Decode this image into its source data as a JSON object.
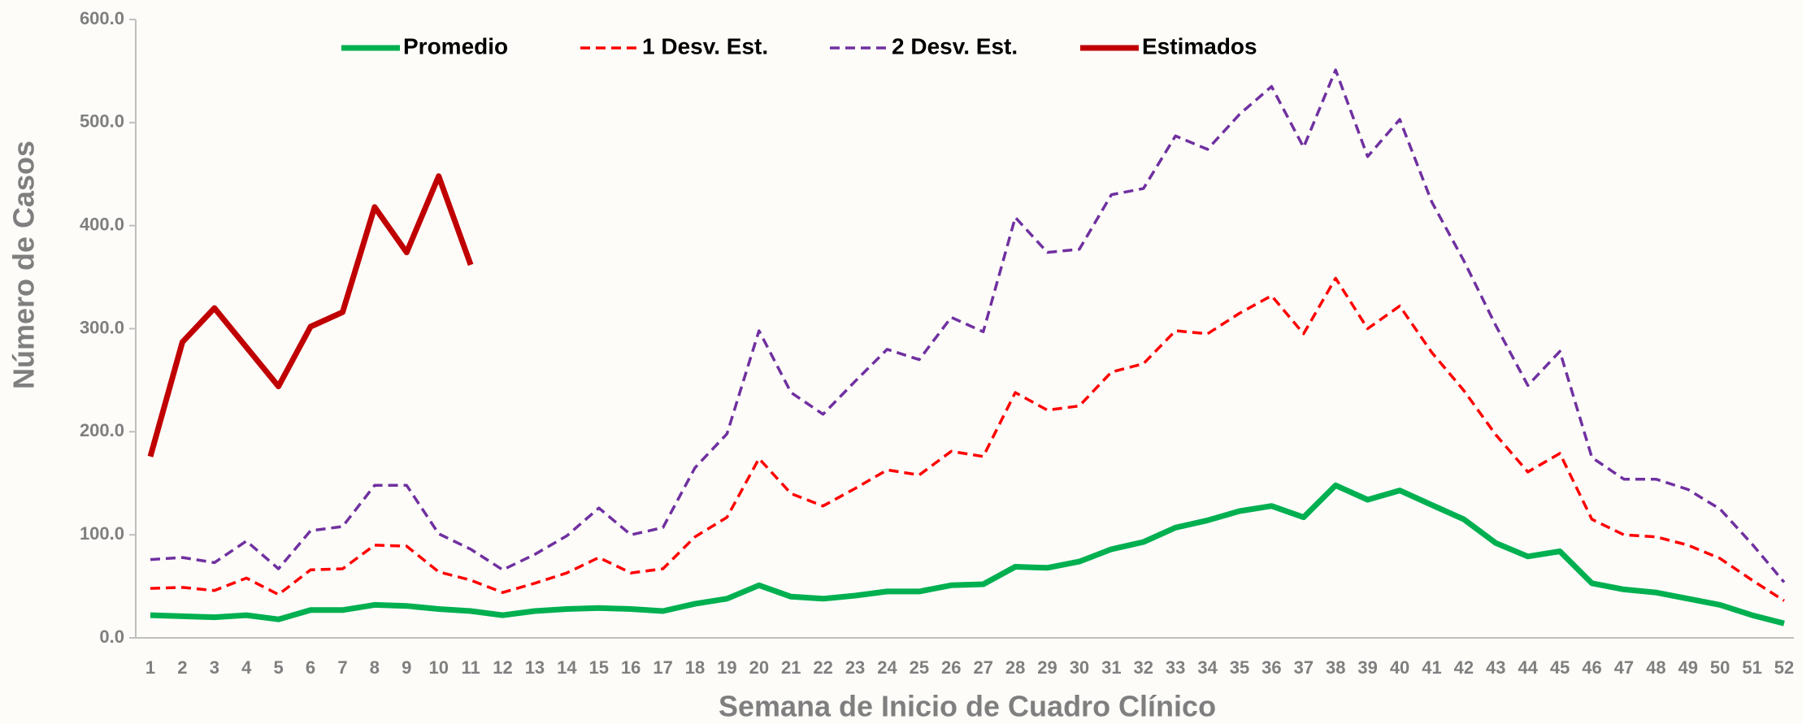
{
  "chart_data": {
    "type": "line",
    "x_label": "Semana de Inicio de Cuadro Clínico",
    "y_label": "Número de Casos",
    "categories": [
      1,
      2,
      3,
      4,
      5,
      6,
      7,
      8,
      9,
      10,
      11,
      12,
      13,
      14,
      15,
      16,
      17,
      18,
      19,
      20,
      21,
      22,
      23,
      24,
      25,
      26,
      27,
      28,
      29,
      30,
      31,
      32,
      33,
      34,
      35,
      36,
      37,
      38,
      39,
      40,
      41,
      42,
      43,
      44,
      45,
      46,
      47,
      48,
      49,
      50,
      51,
      52
    ],
    "ylim": [
      0,
      600
    ],
    "yticks": [
      {
        "value": 0,
        "label": "0.0"
      },
      {
        "value": 100,
        "label": "100.0"
      },
      {
        "value": 200,
        "label": "200.0"
      },
      {
        "value": 300,
        "label": "300.0"
      },
      {
        "value": 400,
        "label": "400.0"
      },
      {
        "value": 500,
        "label": "500.0"
      },
      {
        "value": 600,
        "label": "600.0"
      }
    ],
    "legend": "top",
    "series": [
      {
        "name": "Promedio",
        "color": "#00b050",
        "style": "solid",
        "width": 7,
        "values": [
          22,
          21,
          20,
          22,
          18,
          27,
          27,
          32,
          31,
          28,
          26,
          22,
          26,
          28,
          29,
          28,
          26,
          33,
          38,
          51,
          40,
          38,
          41,
          45,
          45,
          51,
          52,
          69,
          68,
          74,
          86,
          93,
          107,
          114,
          123,
          128,
          117,
          148,
          134,
          143,
          129,
          115,
          92,
          79,
          84,
          53,
          47,
          44,
          38,
          32,
          22,
          14
        ]
      },
      {
        "name": "1 Desv. Est.",
        "color": "#ff0000",
        "style": "dashed",
        "width": 3.5,
        "values": [
          48,
          49,
          46,
          58,
          42,
          66,
          67,
          90,
          89,
          64,
          56,
          44,
          53,
          63,
          78,
          63,
          67,
          98,
          117,
          174,
          140,
          128,
          145,
          163,
          158,
          181,
          176,
          238,
          221,
          225,
          258,
          266,
          298,
          295,
          315,
          332,
          295,
          349,
          300,
          322,
          277,
          240,
          197,
          161,
          179,
          115,
          100,
          98,
          90,
          77,
          56,
          36
        ]
      },
      {
        "name": "2 Desv. Est.",
        "color": "#7030a0",
        "style": "dashed",
        "width": 3.5,
        "values": [
          76,
          78,
          73,
          94,
          67,
          104,
          108,
          148,
          148,
          101,
          86,
          66,
          81,
          99,
          126,
          100,
          107,
          165,
          198,
          298,
          238,
          217,
          249,
          280,
          270,
          311,
          297,
          408,
          374,
          377,
          430,
          436,
          487,
          474,
          508,
          535,
          476,
          551,
          467,
          503,
          423,
          366,
          303,
          245,
          278,
          175,
          154,
          154,
          144,
          125,
          91,
          54
        ]
      },
      {
        "name": "Estimados",
        "color": "#c00000",
        "style": "solid",
        "width": 7,
        "values": [
          176,
          287,
          320,
          282,
          244,
          302,
          316,
          418,
          374,
          448,
          362,
          null,
          null,
          null,
          null,
          null,
          null,
          null,
          null,
          null,
          null,
          null,
          null,
          null,
          null,
          null,
          null,
          null,
          null,
          null,
          null,
          null,
          null,
          null,
          null,
          null,
          null,
          null,
          null,
          null,
          null,
          null,
          null,
          null,
          null,
          null,
          null,
          null,
          null,
          null,
          null,
          null
        ]
      }
    ]
  }
}
